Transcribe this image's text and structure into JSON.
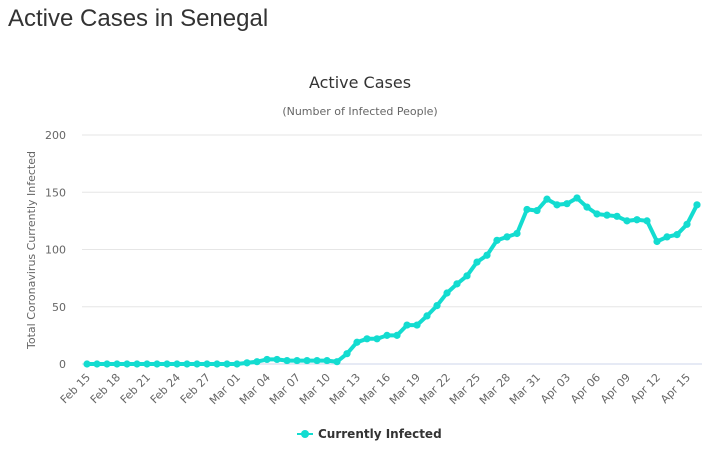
{
  "page": {
    "title": "Active Cases in Senegal"
  },
  "colors": {
    "series": "#13dcd0",
    "grid": "#e6e6e6",
    "text": "#333333",
    "muted": "#666666"
  },
  "chart_data": {
    "type": "line",
    "title": "Active Cases",
    "subtitle": "(Number of Infected People)",
    "ylabel": "Total Coronavirus Currently Infected",
    "xlabel": "",
    "ylim": [
      0,
      200
    ],
    "yticks": [
      0,
      50,
      100,
      150,
      200
    ],
    "grid": true,
    "legend_position": "bottom-center",
    "x": [
      "Feb 15",
      "Feb 16",
      "Feb 17",
      "Feb 18",
      "Feb 19",
      "Feb 20",
      "Feb 21",
      "Feb 22",
      "Feb 23",
      "Feb 24",
      "Feb 25",
      "Feb 26",
      "Feb 27",
      "Feb 28",
      "Feb 29",
      "Mar 01",
      "Mar 02",
      "Mar 03",
      "Mar 04",
      "Mar 05",
      "Mar 06",
      "Mar 07",
      "Mar 08",
      "Mar 09",
      "Mar 10",
      "Mar 11",
      "Mar 12",
      "Mar 13",
      "Mar 14",
      "Mar 15",
      "Mar 16",
      "Mar 17",
      "Mar 18",
      "Mar 19",
      "Mar 20",
      "Mar 21",
      "Mar 22",
      "Mar 23",
      "Mar 24",
      "Mar 25",
      "Mar 26",
      "Mar 27",
      "Mar 28",
      "Mar 29",
      "Mar 30",
      "Mar 31",
      "Apr 01",
      "Apr 02",
      "Apr 03",
      "Apr 04",
      "Apr 05",
      "Apr 06",
      "Apr 07",
      "Apr 08",
      "Apr 09",
      "Apr 10",
      "Apr 11",
      "Apr 12",
      "Apr 13",
      "Apr 14",
      "Apr 15",
      "Apr 16"
    ],
    "x_tick_labels": [
      "Feb 15",
      "Feb 18",
      "Feb 21",
      "Feb 24",
      "Feb 27",
      "Mar 01",
      "Mar 04",
      "Mar 07",
      "Mar 10",
      "Mar 13",
      "Mar 16",
      "Mar 19",
      "Mar 22",
      "Mar 25",
      "Mar 28",
      "Mar 31",
      "Apr 03",
      "Apr 06",
      "Apr 09",
      "Apr 12",
      "Apr 15"
    ],
    "series": [
      {
        "name": "Currently Infected",
        "values": [
          0,
          0,
          0,
          0,
          0,
          0,
          0,
          0,
          0,
          0,
          0,
          0,
          0,
          0,
          0,
          0,
          1,
          2,
          4,
          4,
          3,
          3,
          3,
          3,
          3,
          2,
          9,
          19,
          22,
          22,
          25,
          25,
          34,
          34,
          42,
          51,
          62,
          70,
          77,
          89,
          95,
          108,
          111,
          114,
          135,
          134,
          144,
          139,
          140,
          145,
          137,
          131,
          130,
          129,
          125,
          126,
          125,
          107,
          111,
          113,
          122,
          139
        ]
      }
    ]
  }
}
